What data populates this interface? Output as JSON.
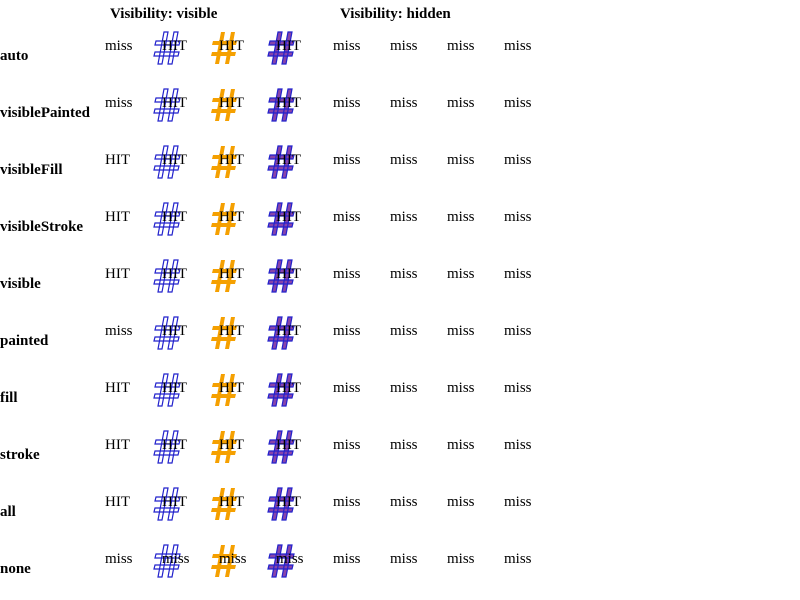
{
  "headers": {
    "visible": "Visibility: visible",
    "hidden": "Visibility: hidden"
  },
  "colors": {
    "stroke_blue": "#2222cc",
    "fill_orange": "#f5a000",
    "fill_purple": "#8844aa"
  },
  "rows": [
    {
      "label": "auto",
      "cells": [
        "miss",
        "HIT",
        "HIT",
        "HIT",
        "miss",
        "miss",
        "miss",
        "miss"
      ]
    },
    {
      "label": "visiblePainted",
      "cells": [
        "miss",
        "HIT",
        "HIT",
        "HIT",
        "miss",
        "miss",
        "miss",
        "miss"
      ]
    },
    {
      "label": "visibleFill",
      "cells": [
        "HIT",
        "HIT",
        "HIT",
        "HIT",
        "miss",
        "miss",
        "miss",
        "miss"
      ]
    },
    {
      "label": "visibleStroke",
      "cells": [
        "HIT",
        "HIT",
        "HIT",
        "HIT",
        "miss",
        "miss",
        "miss",
        "miss"
      ]
    },
    {
      "label": "visible",
      "cells": [
        "HIT",
        "HIT",
        "HIT",
        "HIT",
        "miss",
        "miss",
        "miss",
        "miss"
      ]
    },
    {
      "label": "painted",
      "cells": [
        "miss",
        "HIT",
        "HIT",
        "HIT",
        "miss",
        "miss",
        "miss",
        "miss"
      ]
    },
    {
      "label": "fill",
      "cells": [
        "HIT",
        "HIT",
        "HIT",
        "HIT",
        "miss",
        "miss",
        "miss",
        "miss"
      ]
    },
    {
      "label": "stroke",
      "cells": [
        "HIT",
        "HIT",
        "HIT",
        "HIT",
        "miss",
        "miss",
        "miss",
        "miss"
      ]
    },
    {
      "label": "all",
      "cells": [
        "HIT",
        "HIT",
        "HIT",
        "HIT",
        "miss",
        "miss",
        "miss",
        "miss"
      ]
    },
    {
      "label": "none",
      "cells": [
        "miss",
        "miss",
        "miss",
        "miss",
        "miss",
        "miss",
        "miss",
        "miss"
      ]
    }
  ]
}
